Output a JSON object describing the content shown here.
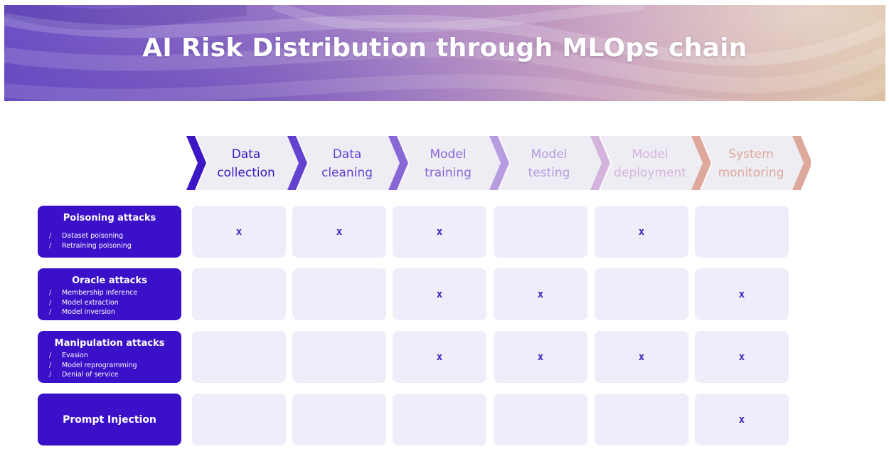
{
  "title": "AI Risk Distribution through MLOps chain",
  "colors": {
    "primary": "#3a10c9",
    "cell_bg": "#eeedf9",
    "mark": "#3f22c0"
  },
  "stages": [
    {
      "line1": "Data",
      "line2": "collection",
      "color": "#3b17c6"
    },
    {
      "line1": "Data",
      "line2": "cleaning",
      "color": "#6342d0"
    },
    {
      "line1": "Model",
      "line2": "training",
      "color": "#8a67d6"
    },
    {
      "line1": "Model",
      "line2": "testing",
      "color": "#b79ce2"
    },
    {
      "line1": "Model",
      "line2": "deployment",
      "color": "#d4b4dc"
    },
    {
      "line1": "System",
      "line2": "monitoring",
      "color": "#dfa89c"
    }
  ],
  "attacks": [
    {
      "title": "Poisoning attacks",
      "items": [
        "Dataset poisoning",
        "Retraining poisoning"
      ],
      "marks": [
        true,
        true,
        true,
        false,
        true,
        false
      ]
    },
    {
      "title": "Oracle attacks",
      "items": [
        "Membership inference",
        "Model extraction",
        "Model inversion"
      ],
      "marks": [
        false,
        false,
        true,
        true,
        false,
        true
      ]
    },
    {
      "title": "Manipulation attacks",
      "items": [
        "Evasion",
        "Model reprogramming",
        "Denial of service"
      ],
      "marks": [
        false,
        false,
        true,
        true,
        true,
        true
      ]
    },
    {
      "title": "Prompt Injection",
      "items": [],
      "marks": [
        false,
        false,
        false,
        false,
        false,
        true
      ]
    }
  ],
  "mark_symbol": "x",
  "item_prefix": "/"
}
